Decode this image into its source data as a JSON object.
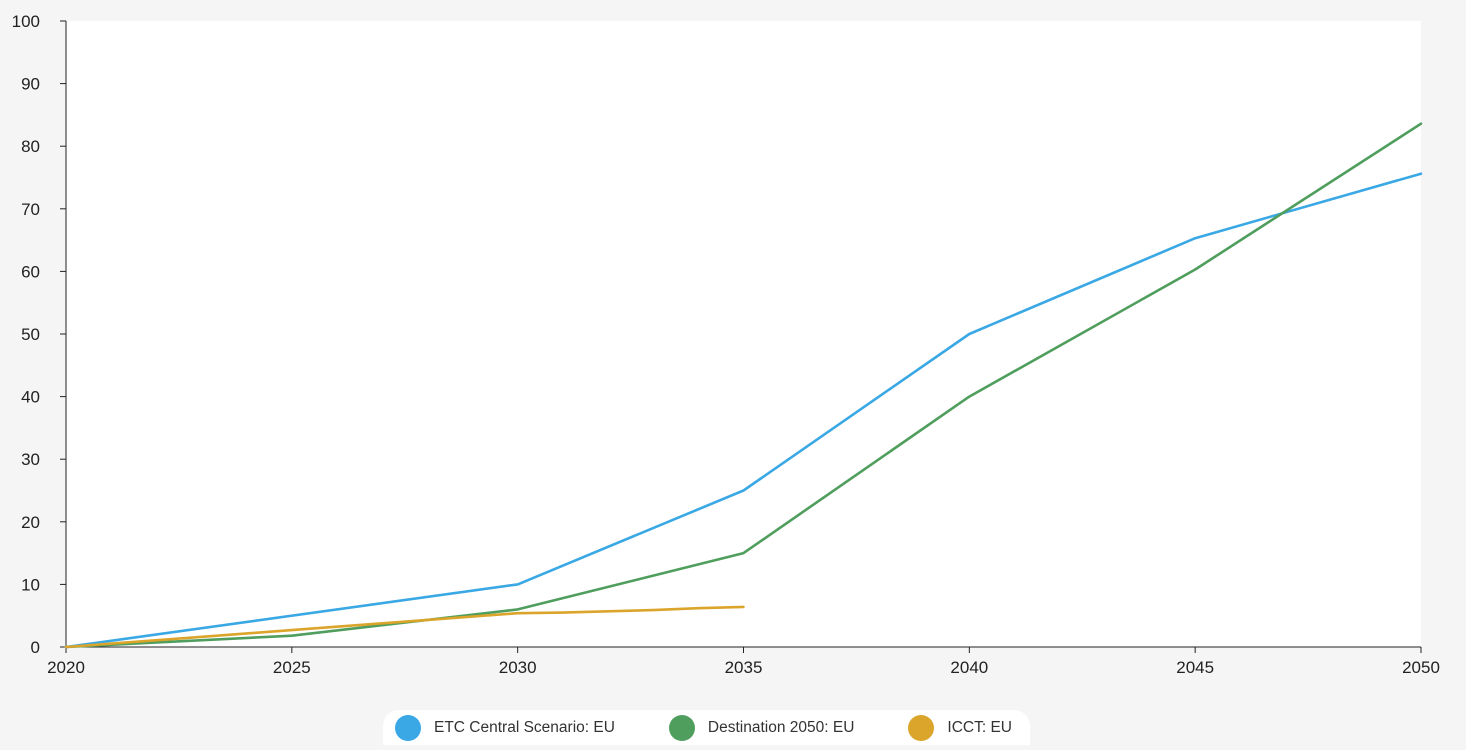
{
  "chart_data": {
    "type": "line",
    "title": "",
    "xlabel": "",
    "ylabel": "",
    "x": [
      2020,
      2025,
      2030,
      2035,
      2040,
      2045,
      2050
    ],
    "xlim": [
      2020,
      2050
    ],
    "ylim": [
      0,
      100
    ],
    "x_ticks": [
      "2020",
      "2025",
      "2030",
      "2035",
      "2040",
      "2045",
      "2050"
    ],
    "y_ticks": [
      "0",
      "10",
      "20",
      "30",
      "40",
      "50",
      "60",
      "70",
      "80",
      "90",
      "100"
    ],
    "grid": false,
    "legend_position": "bottom-center",
    "series": [
      {
        "name": "ETC Central Scenario: EU",
        "color": "#3aa8e4",
        "points": [
          [
            2020,
            0
          ],
          [
            2030,
            10
          ],
          [
            2035,
            25
          ],
          [
            2040,
            50
          ],
          [
            2045,
            65.3
          ],
          [
            2050,
            75.6
          ]
        ]
      },
      {
        "name": "Destination 2050: EU",
        "color": "#4f9e5d",
        "points": [
          [
            2020,
            0
          ],
          [
            2025,
            1.8
          ],
          [
            2030,
            6
          ],
          [
            2035,
            15
          ],
          [
            2040,
            40
          ],
          [
            2045,
            60.3
          ],
          [
            2050,
            83.6
          ]
        ]
      },
      {
        "name": "ICCT: EU",
        "color": "#dba42a",
        "points": [
          [
            2020,
            0
          ],
          [
            2025,
            2.7
          ],
          [
            2030,
            5.4
          ],
          [
            2031,
            5.5
          ],
          [
            2032,
            5.7
          ],
          [
            2033,
            5.9
          ],
          [
            2034,
            6.2
          ],
          [
            2035,
            6.4
          ]
        ]
      }
    ]
  }
}
